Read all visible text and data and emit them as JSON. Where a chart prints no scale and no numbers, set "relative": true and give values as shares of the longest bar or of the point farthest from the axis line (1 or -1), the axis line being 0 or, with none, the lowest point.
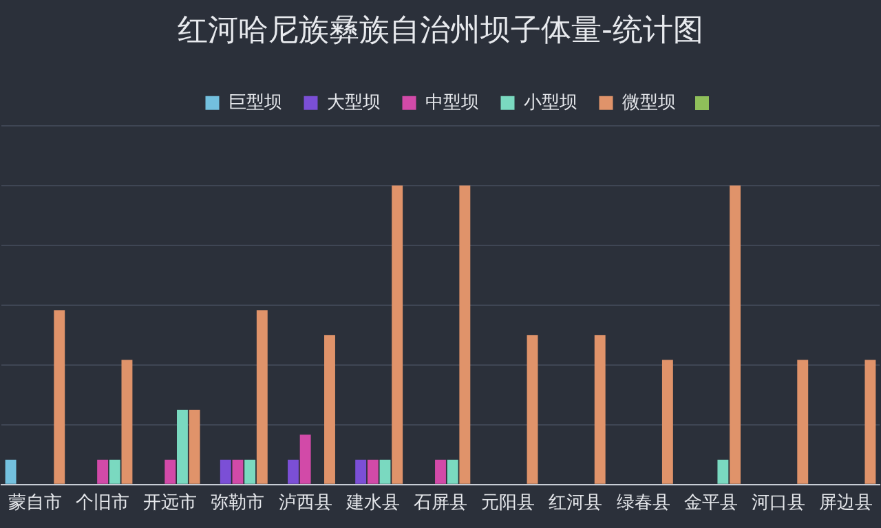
{
  "chart_data": {
    "type": "bar",
    "title": "红河哈尼族彝族自治州坝子体量-统计图",
    "relative": true,
    "grid": "y",
    "legend": "top",
    "categories": [
      "蒙自市",
      "个旧市",
      "开远市",
      "弥勒市",
      "泸西县",
      "建水县",
      "石屏县",
      "元阳县",
      "红河县",
      "绿春县",
      "金平县",
      "河口县",
      "屏边县"
    ],
    "series": [
      {
        "name": "巨型坝",
        "color": "#73c0de",
        "values": [
          0.083,
          null,
          null,
          null,
          null,
          null,
          null,
          null,
          null,
          null,
          null,
          null,
          null
        ]
      },
      {
        "name": "大型坝",
        "color": "#7b4fd6",
        "values": [
          null,
          null,
          null,
          0.083,
          0.083,
          0.083,
          null,
          null,
          null,
          null,
          null,
          null,
          null
        ]
      },
      {
        "name": "中型坝",
        "color": "#d24aa8",
        "values": [
          null,
          0.083,
          0.083,
          0.083,
          0.167,
          0.083,
          0.083,
          null,
          null,
          null,
          null,
          null,
          null
        ]
      },
      {
        "name": "小型坝",
        "color": "#7ad9c0",
        "values": [
          null,
          0.083,
          0.25,
          0.083,
          null,
          0.083,
          0.083,
          null,
          null,
          null,
          0.083,
          null,
          null
        ]
      },
      {
        "name": "微型坝",
        "color": "#e0936a",
        "values": [
          0.583,
          0.417,
          0.25,
          0.583,
          0.5,
          1,
          1,
          0.5,
          0.5,
          0.417,
          1,
          0.417,
          0.417
        ]
      }
    ]
  }
}
